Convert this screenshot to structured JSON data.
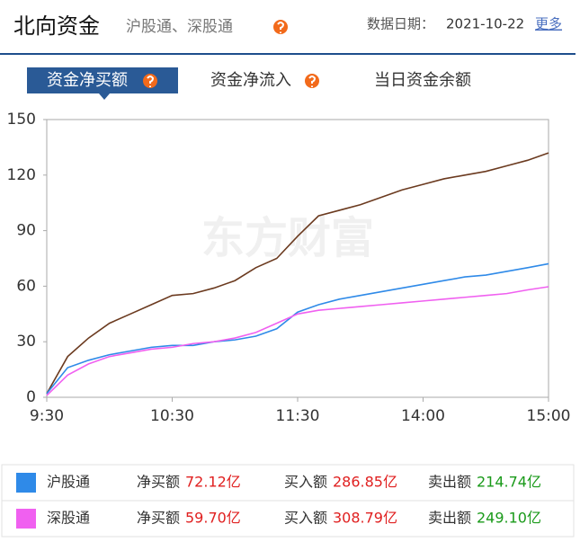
{
  "header": {
    "title": "北向资金",
    "subtitle": "沪股通、深股通",
    "date_label": "数据日期：",
    "date": "2021-10-22",
    "more": "更多"
  },
  "tabs": [
    "资金净买额",
    "资金净流入",
    "当日资金余额"
  ],
  "chart_data": {
    "type": "line",
    "watermark": "东方财富",
    "x": [
      0,
      10,
      20,
      30,
      40,
      50,
      60,
      70,
      80,
      90,
      100,
      110,
      120,
      130,
      140,
      150,
      160,
      170,
      180,
      190,
      200,
      210,
      220,
      230,
      240
    ],
    "xlim": [
      0,
      240
    ],
    "xticks": [
      {
        "value": 0,
        "label": "9:30"
      },
      {
        "value": 60,
        "label": "10:30"
      },
      {
        "value": 120,
        "label": "11:30"
      },
      {
        "value": 180,
        "label": "14:00"
      },
      {
        "value": 240,
        "label": "15:00"
      }
    ],
    "ylim": [
      0,
      150
    ],
    "yticks": [
      0,
      30,
      60,
      90,
      120,
      150
    ],
    "series": [
      {
        "color": "#6b3a1f",
        "values": [
          2,
          22,
          32,
          40,
          45,
          50,
          55,
          56,
          59,
          63,
          70,
          75,
          87,
          98,
          101,
          104,
          108,
          112,
          115,
          118,
          120,
          122,
          125,
          128,
          132
        ]
      },
      {
        "color": "#2f8ae8",
        "values": [
          2,
          16,
          20,
          23,
          25,
          27,
          28,
          28,
          30,
          31,
          33,
          37,
          46,
          50,
          53,
          55,
          57,
          59,
          61,
          63,
          65,
          66,
          68,
          70,
          72.12
        ]
      },
      {
        "color": "#f060f0",
        "values": [
          1,
          12,
          18,
          22,
          24,
          26,
          27,
          29,
          30,
          32,
          35,
          40,
          45,
          47,
          48,
          49,
          50,
          51,
          52,
          53,
          54,
          55,
          56,
          58,
          59.7
        ]
      }
    ]
  },
  "table": {
    "rows": [
      {
        "color": "#2f8ae8",
        "cells": [
          "沪股通",
          "净买额",
          "72.12亿",
          "买入额",
          "286.85亿",
          "卖出额",
          "214.74亿"
        ]
      },
      {
        "color": "#f060f0",
        "cells": [
          "深股通",
          "净买额",
          "59.70亿",
          "买入额",
          "308.79亿",
          "卖出额",
          "249.10亿"
        ]
      }
    ]
  }
}
